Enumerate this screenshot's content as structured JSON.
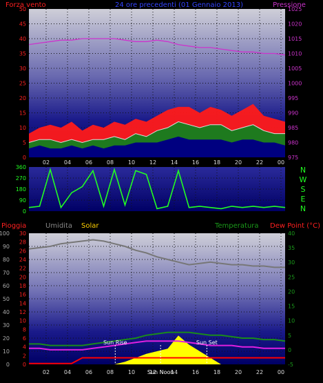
{
  "header": {
    "left": "Forza vento",
    "center": "24 ore precedenti (01 Gennaio 2013)",
    "right": "Pressione"
  },
  "sections": {
    "bottom": {
      "rain": "Pioggia",
      "humidity": "Umidita",
      "solar": "Solar",
      "temperature": "Temperatura",
      "dewpoint": "Dew Point (°C)"
    },
    "compass": [
      "N",
      "W",
      "S",
      "E",
      "N"
    ],
    "sun_rise": "Sun Rise",
    "sun_set": "Sun Set",
    "sun_noon": "Sun Noon"
  },
  "colors": {
    "wind": "#ff1a1a",
    "gust": "#ff0000",
    "avg": "#dddddd",
    "green": "#1e7a1e",
    "pressure": "#cc33cc",
    "direction": "#22ff22",
    "humidity": "#777777",
    "temperature": "#1a8c1a",
    "dewpoint": "#e020e0",
    "solar": "#ffff00",
    "rain": "#ff0000",
    "grid": "#111111",
    "bg_top": "#c8c8d4",
    "bg_bottom": "#000070"
  },
  "chart_data": [
    {
      "type": "line",
      "title": "24 ore precedenti (01 Gennaio 2013)",
      "x_ticks": [
        "02",
        "04",
        "06",
        "08",
        "10",
        "12",
        "14",
        "16",
        "18",
        "20",
        "22",
        "00"
      ],
      "y_left": {
        "label": "Forza vento",
        "ticks": [
          0,
          5,
          10,
          15,
          20,
          25,
          30,
          35,
          40,
          45,
          50
        ],
        "ylim": [
          0,
          50
        ]
      },
      "y_right": {
        "label": "Pressione",
        "ticks": [
          975,
          980,
          985,
          990,
          995,
          1000,
          1005,
          1010,
          1015,
          1020,
          1025
        ],
        "ylim": [
          975,
          1025
        ]
      },
      "series": [
        {
          "name": "Pressione",
          "axis": "right",
          "values": [
            1013,
            1013.5,
            1014,
            1014.5,
            1014.5,
            1015,
            1015,
            1015,
            1015,
            1014.5,
            1014,
            1014,
            1014.5,
            1014,
            1013,
            1012.5,
            1012,
            1012,
            1011.5,
            1011,
            1010.5,
            1010.5,
            1010,
            1010,
            1009.5
          ]
        },
        {
          "name": "raffica",
          "axis": "left",
          "values": [
            8,
            10,
            11,
            10,
            12,
            9,
            11,
            10,
            12,
            11,
            13,
            12,
            14,
            16,
            17,
            17,
            15,
            17,
            16,
            14,
            16,
            18,
            14,
            13,
            12
          ]
        },
        {
          "name": "media",
          "axis": "left",
          "values": [
            5,
            6,
            6,
            5,
            6,
            5,
            6,
            6,
            7,
            6,
            8,
            7,
            9,
            10,
            12,
            11,
            10,
            11,
            11,
            9,
            10,
            11,
            9,
            8,
            8
          ]
        },
        {
          "name": "minimo",
          "axis": "left",
          "values": [
            3,
            4,
            3,
            3,
            4,
            3,
            4,
            3,
            4,
            4,
            5,
            5,
            5,
            6,
            7,
            6,
            6,
            6,
            6,
            5,
            6,
            6,
            5,
            5,
            4
          ]
        }
      ]
    },
    {
      "type": "line",
      "y_left": {
        "ticks": [
          0,
          90,
          180,
          270,
          360
        ],
        "ylim": [
          0,
          360
        ]
      },
      "y_right": {
        "labels": [
          "N",
          "W",
          "S",
          "E",
          "N"
        ]
      },
      "x_ticks": [
        "02",
        "04",
        "06",
        "08",
        "10",
        "12",
        "14",
        "16",
        "18",
        "20",
        "22",
        "00"
      ],
      "series": [
        {
          "name": "direzione",
          "values": [
            30,
            40,
            340,
            30,
            150,
            200,
            330,
            40,
            340,
            50,
            330,
            300,
            20,
            40,
            330,
            30,
            40,
            30,
            20,
            40,
            30,
            40,
            30,
            40,
            30
          ]
        }
      ]
    },
    {
      "type": "line",
      "x_ticks": [
        "02",
        "04",
        "06",
        "08",
        "10",
        "12",
        "14",
        "16",
        "18",
        "20",
        "22",
        "00"
      ],
      "y_left_outer": {
        "label": "Umidita",
        "ticks": [
          0,
          10,
          20,
          30,
          40,
          50,
          60,
          70,
          80,
          90,
          100
        ],
        "ylim": [
          0,
          100
        ]
      },
      "y_left_inner": {
        "label": "Pioggia",
        "ticks": [
          0,
          2,
          4,
          6,
          8,
          10,
          12,
          14,
          16,
          18,
          20,
          22,
          24,
          26,
          28,
          30
        ],
        "ylim": [
          0,
          30
        ]
      },
      "y_right": {
        "label": "Dew Point (°C)",
        "ticks": [
          -5,
          0,
          5,
          10,
          15,
          20,
          25,
          30,
          35,
          40
        ],
        "ylim": [
          -5,
          40
        ]
      },
      "series": [
        {
          "name": "Umidita",
          "axis": "left_outer",
          "values": [
            88,
            89,
            90,
            92,
            93,
            94,
            95,
            94,
            92,
            90,
            87,
            85,
            82,
            80,
            78,
            76,
            77,
            78,
            77,
            76,
            76,
            75,
            75,
            74,
            74
          ]
        },
        {
          "name": "Temperatura",
          "axis": "right",
          "values": [
            2,
            2,
            1.5,
            1.5,
            1.5,
            1.5,
            2,
            2.5,
            3,
            3.5,
            4,
            5,
            5.5,
            6,
            6,
            6,
            5.5,
            5,
            5,
            4.5,
            4,
            4,
            3.5,
            3.5,
            3
          ]
        },
        {
          "name": "Dew Point",
          "axis": "right",
          "values": [
            0.5,
            0.5,
            0,
            0,
            0,
            0,
            0.5,
            1,
            1.5,
            2,
            2.5,
            3,
            3,
            3,
            3,
            2.5,
            2,
            1.5,
            1.5,
            1.5,
            1,
            1,
            0.5,
            0.5,
            0.5
          ]
        },
        {
          "name": "Solar",
          "axis": "left_outer",
          "values": [
            0,
            0,
            0,
            0,
            0,
            0,
            0,
            0,
            0,
            2,
            5,
            8,
            10,
            12,
            22,
            15,
            10,
            5,
            0,
            0,
            0,
            0,
            0,
            0,
            0
          ]
        },
        {
          "name": "Pioggia",
          "axis": "left_inner",
          "values": [
            0.2,
            0.2,
            0.2,
            0.2,
            0.2,
            1.5,
            1.5,
            1.5,
            1.5,
            1.5,
            1.5,
            1.5,
            1.5,
            1.5,
            1.5,
            1.5,
            1.5,
            1.5,
            1.5,
            1.5,
            1.5,
            1.5,
            1.5,
            1.5,
            1.5
          ]
        }
      ],
      "markers": [
        {
          "label": "Sun Rise",
          "x": "08:05"
        },
        {
          "label": "Sun Noon",
          "x": "12:20"
        },
        {
          "label": "Sun Set",
          "x": "16:40"
        }
      ]
    }
  ]
}
